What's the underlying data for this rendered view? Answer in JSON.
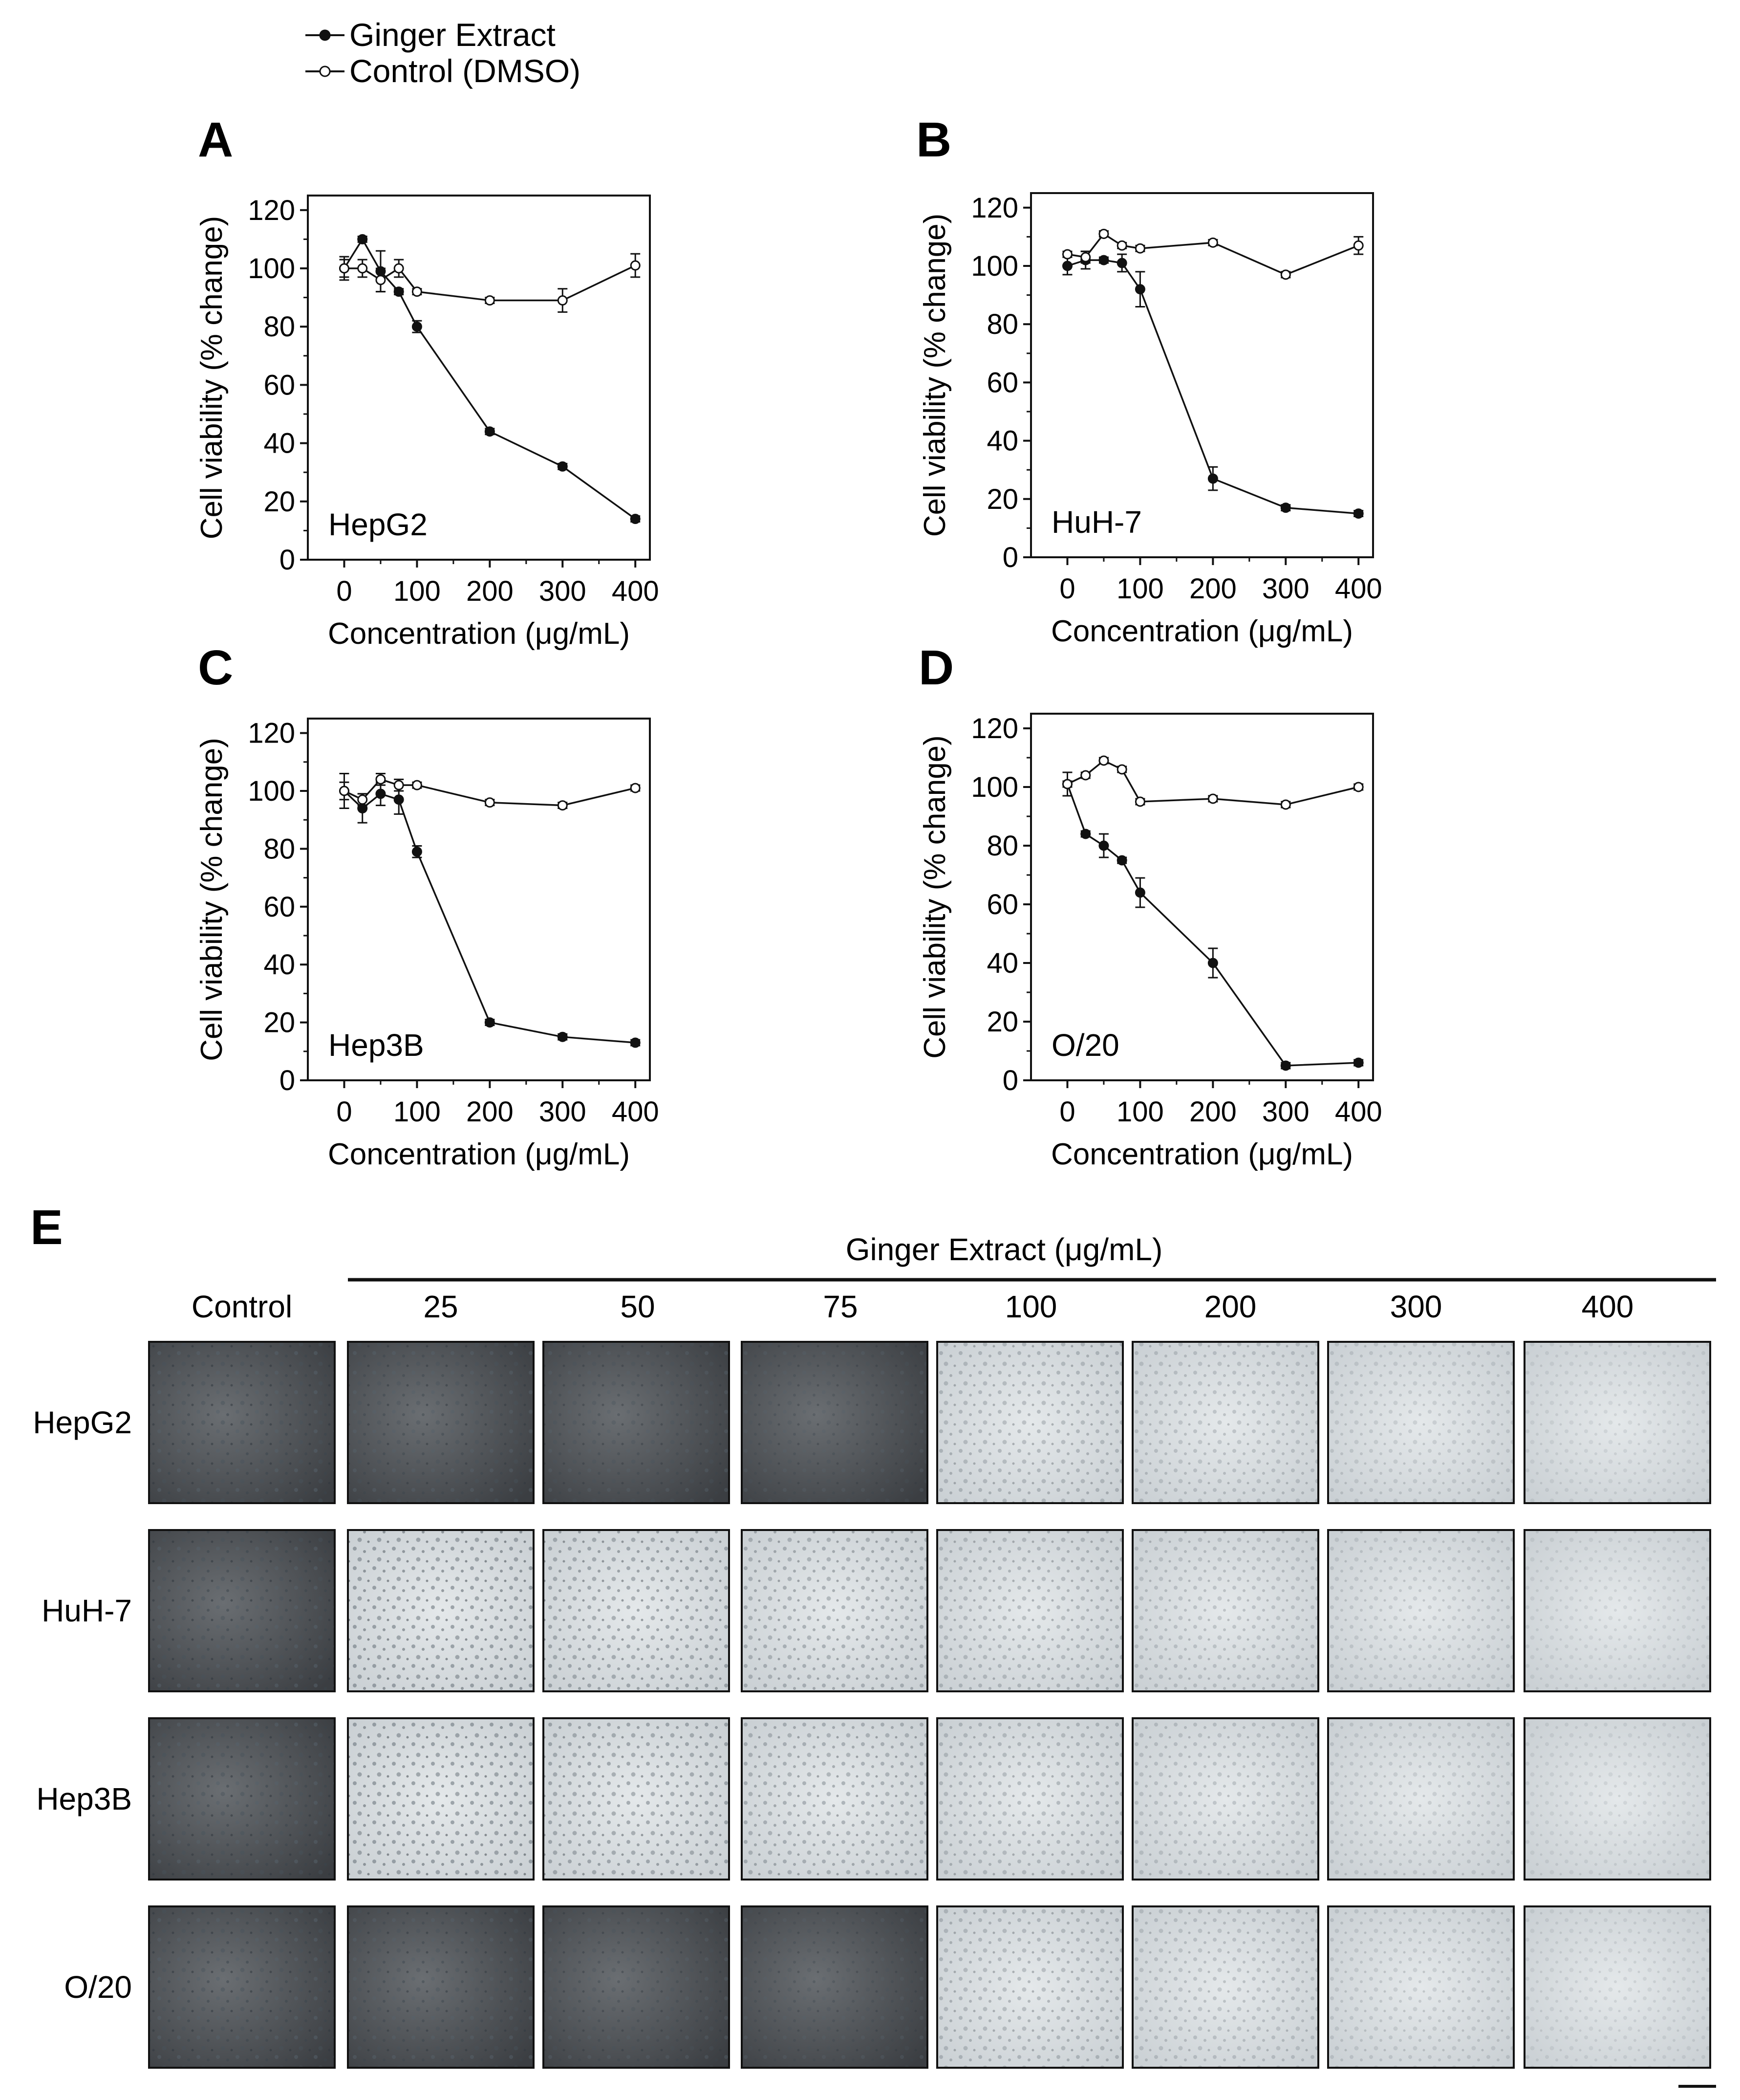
{
  "legend": {
    "ginger_label": "Ginger Extract",
    "control_label": "Control (DMSO)"
  },
  "chart_data": [
    {
      "type": "line",
      "panel": "A",
      "cell_line": "HepG2",
      "xlabel": "Concentration (μg/mL)",
      "ylabel": "Cell viability (% change)",
      "xlim": [
        -50,
        420
      ],
      "ylim": [
        0,
        125
      ],
      "xticks": [
        0,
        100,
        200,
        300,
        400
      ],
      "yticks": [
        0,
        20,
        40,
        60,
        80,
        100,
        120
      ],
      "x": [
        0,
        25,
        50,
        75,
        100,
        200,
        300,
        400
      ],
      "series": [
        {
          "name": "Ginger Extract",
          "filled": true,
          "values": [
            100,
            110,
            99,
            92,
            80,
            44,
            32,
            14
          ],
          "errors": [
            3,
            1,
            7,
            1,
            2,
            1,
            1,
            1
          ]
        },
        {
          "name": "Control (DMSO)",
          "filled": false,
          "values": [
            100,
            100,
            96,
            100,
            92,
            89,
            89,
            101
          ],
          "errors": [
            4,
            3,
            4,
            3,
            1,
            1,
            4,
            4
          ]
        }
      ]
    },
    {
      "type": "line",
      "panel": "B",
      "cell_line": "HuH-7",
      "xlabel": "Concentration (μg/mL)",
      "ylabel": "Cell viability (% change)",
      "xlim": [
        -50,
        420
      ],
      "ylim": [
        0,
        125
      ],
      "xticks": [
        0,
        100,
        200,
        300,
        400
      ],
      "yticks": [
        0,
        20,
        40,
        60,
        80,
        100,
        120
      ],
      "x": [
        0,
        25,
        50,
        75,
        100,
        200,
        300,
        400
      ],
      "series": [
        {
          "name": "Ginger Extract",
          "filled": true,
          "values": [
            100,
            102,
            102,
            101,
            92,
            27,
            17,
            15
          ],
          "errors": [
            3,
            3,
            1,
            3,
            6,
            4,
            1,
            1
          ]
        },
        {
          "name": "Control (DMSO)",
          "filled": false,
          "values": [
            104,
            103,
            111,
            107,
            106,
            108,
            97,
            107
          ],
          "errors": [
            1,
            2,
            1,
            1,
            1,
            1,
            1,
            3
          ]
        }
      ]
    },
    {
      "type": "line",
      "panel": "C",
      "cell_line": "Hep3B",
      "xlabel": "Concentration (μg/mL)",
      "ylabel": "Cell viability (% change)",
      "xlim": [
        -50,
        420
      ],
      "ylim": [
        0,
        125
      ],
      "xticks": [
        0,
        100,
        200,
        300,
        400
      ],
      "yticks": [
        0,
        20,
        40,
        60,
        80,
        100,
        120
      ],
      "x": [
        0,
        25,
        50,
        75,
        100,
        200,
        300,
        400
      ],
      "series": [
        {
          "name": "Ginger Extract",
          "filled": true,
          "values": [
            100,
            94,
            99,
            97,
            79,
            20,
            15,
            13
          ],
          "errors": [
            3,
            5,
            4,
            5,
            2,
            1,
            1,
            1
          ]
        },
        {
          "name": "Control (DMSO)",
          "filled": false,
          "values": [
            100,
            97,
            104,
            102,
            102,
            96,
            95,
            101
          ],
          "errors": [
            6,
            2,
            2,
            2,
            1,
            1,
            1,
            1
          ]
        }
      ]
    },
    {
      "type": "line",
      "panel": "D",
      "cell_line": "O/20",
      "xlabel": "Concentration (μg/mL)",
      "ylabel": "Cell viability (% change)",
      "xlim": [
        -50,
        420
      ],
      "ylim": [
        0,
        125
      ],
      "xticks": [
        0,
        100,
        200,
        300,
        400
      ],
      "yticks": [
        0,
        20,
        40,
        60,
        80,
        100,
        120
      ],
      "x": [
        0,
        25,
        50,
        75,
        100,
        200,
        300,
        400
      ],
      "series": [
        {
          "name": "Ginger Extract",
          "filled": true,
          "values": [
            101,
            84,
            80,
            75,
            64,
            40,
            5,
            6
          ],
          "errors": [
            4,
            1,
            4,
            1,
            5,
            5,
            1,
            1
          ]
        },
        {
          "name": "Control (DMSO)",
          "filled": false,
          "values": [
            101,
            104,
            109,
            106,
            95,
            96,
            94,
            100
          ],
          "errors": [
            1,
            1,
            1,
            1,
            1,
            1,
            1,
            1
          ]
        }
      ]
    }
  ],
  "micrographs": {
    "panel": "E",
    "title": "Ginger Extract (μg/mL)",
    "columns": [
      "Control",
      "25",
      "50",
      "75",
      "100",
      "200",
      "300",
      "400"
    ],
    "rows": [
      "HepG2",
      "HuH-7",
      "Hep3B",
      "O/20"
    ]
  }
}
